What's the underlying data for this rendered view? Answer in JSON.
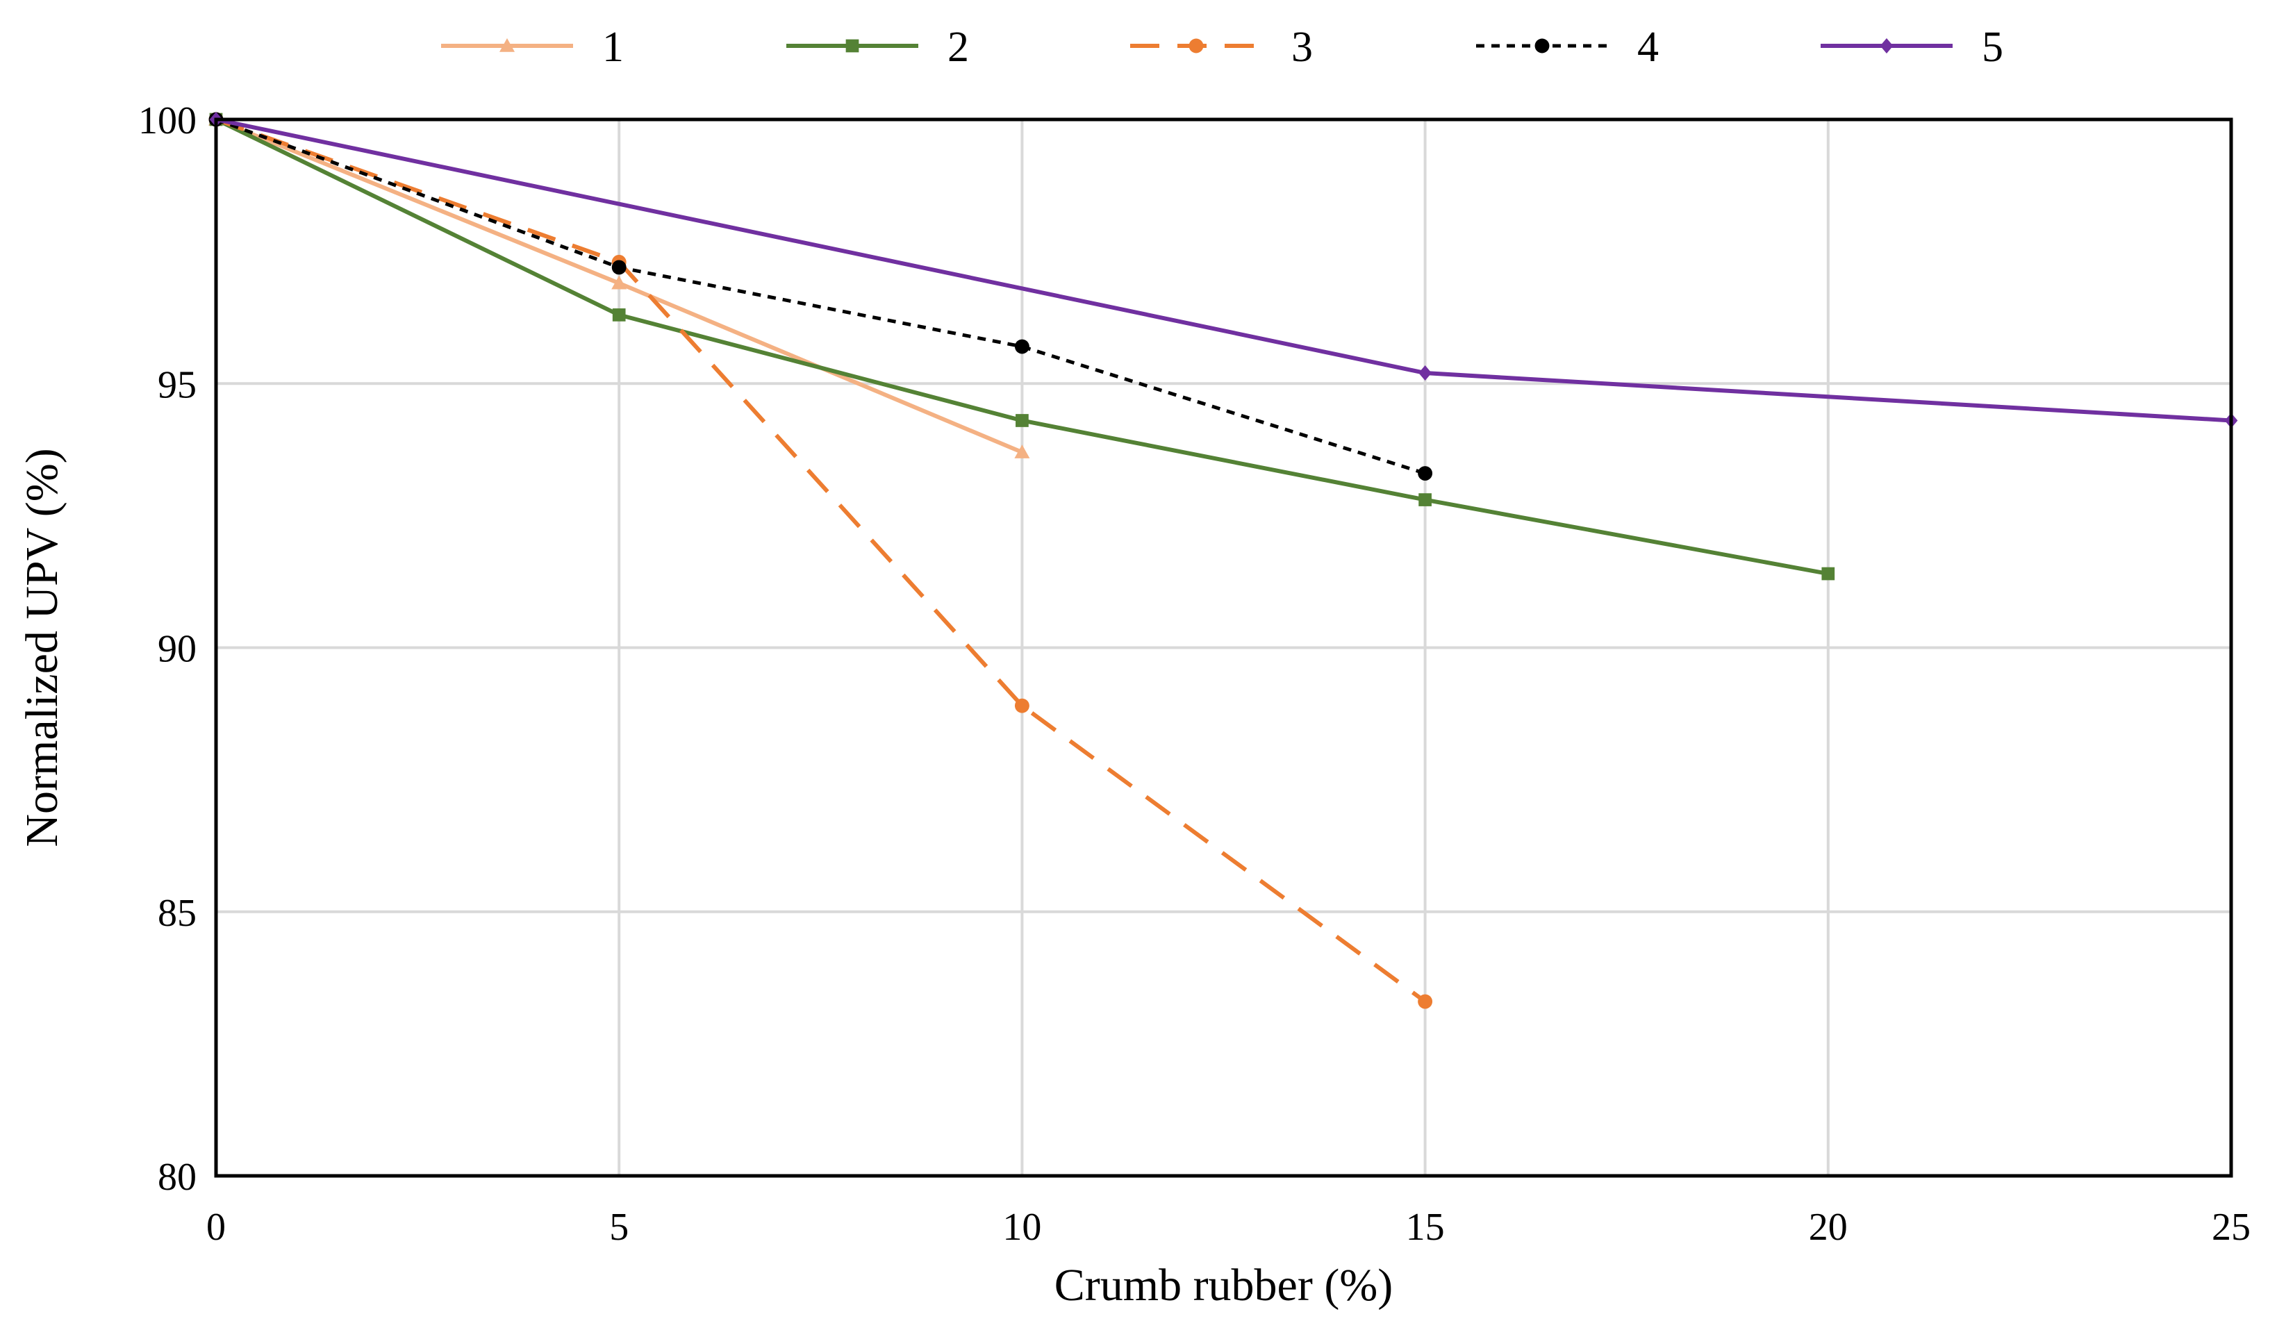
{
  "chart_data": {
    "type": "line",
    "title": "",
    "xlabel": "Crumb rubber (%)",
    "ylabel": "Normalized UPV (%)",
    "xlim": [
      0,
      25
    ],
    "ylim": [
      80,
      100
    ],
    "xticks": [
      0,
      5,
      10,
      15,
      20,
      25
    ],
    "yticks": [
      80,
      85,
      90,
      95,
      100
    ],
    "xtick_labels": [
      "0",
      "5",
      "10",
      "15",
      "20",
      "25"
    ],
    "ytick_labels": [
      "80",
      "85",
      "90",
      "95",
      "100"
    ],
    "grid": true,
    "legend_position": "top",
    "series": [
      {
        "name": "1",
        "x": [
          0,
          5,
          10
        ],
        "values": [
          100,
          96.9,
          93.7
        ],
        "color": "#F4B183",
        "marker": "triangle",
        "dash": "solid"
      },
      {
        "name": "2",
        "x": [
          0,
          5,
          10,
          15,
          20
        ],
        "values": [
          100,
          96.3,
          94.3,
          92.8,
          91.4
        ],
        "color": "#548235",
        "marker": "square",
        "dash": "solid"
      },
      {
        "name": "3",
        "x": [
          0,
          5,
          10,
          15
        ],
        "values": [
          100,
          97.3,
          88.9,
          83.3
        ],
        "color": "#ED7D31",
        "marker": "circle",
        "dash": "dashed"
      },
      {
        "name": "4",
        "x": [
          0,
          5,
          10,
          15
        ],
        "values": [
          100,
          97.2,
          95.7,
          93.3
        ],
        "color": "#000000",
        "marker": "circle",
        "dash": "dotted"
      },
      {
        "name": "5",
        "x": [
          0,
          15,
          25
        ],
        "values": [
          100,
          95.2,
          94.3
        ],
        "color": "#7030A0",
        "marker": "diamond",
        "dash": "solid"
      }
    ]
  }
}
